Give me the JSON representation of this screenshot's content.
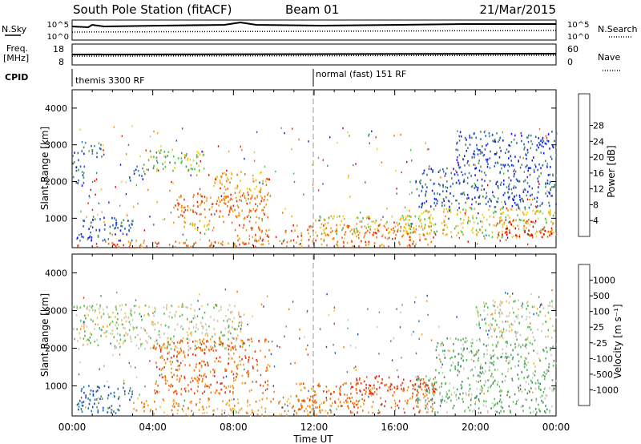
{
  "header": {
    "station": "South Pole Station (fitACF)",
    "beam": "Beam 01",
    "date": "21/Mar/2015"
  },
  "top_panels": {
    "nsky_label": "N.Sky",
    "nsearch_label": "N.Search",
    "noise_ticks": [
      "10^5",
      "10^0"
    ],
    "freq_label_1": "Freq.",
    "freq_label_2": "[MHz]",
    "freq_ticks": [
      "18",
      "8"
    ],
    "nave_label": "Nave",
    "nave_ticks": [
      "60",
      "0"
    ],
    "cpid_label": "CPID",
    "cpid_1": "themis 3300 RF",
    "cpid_2": "normal (fast) 151 RF"
  },
  "chart_data": [
    {
      "type": "heatmap",
      "panel": "power",
      "xlabel": "",
      "ylabel": "Slant Range [km]",
      "x_ticks": [
        "00:00",
        "04:00",
        "08:00",
        "12:00",
        "16:00",
        "20:00",
        "00:00"
      ],
      "xlim_hours": [
        0,
        24
      ],
      "ylim": [
        200,
        4500
      ],
      "y_ticks": [
        1000,
        2000,
        3000,
        4000
      ],
      "colorbar_label": "Power [dB]",
      "colorbar_ticks": [
        4,
        8,
        12,
        16,
        20,
        24,
        28
      ],
      "colorbar_colors": [
        "#1818f0",
        "#2860b8",
        "#4a8c68",
        "#50c050",
        "#e8d020",
        "#f0a020",
        "#f07010",
        "#e83018",
        "#e00000"
      ],
      "regions": [
        {
          "t0": 0.2,
          "t1": 8.5,
          "r0": 220,
          "r1": 420,
          "level": 6
        },
        {
          "t0": 0.2,
          "t1": 3.0,
          "r0": 400,
          "r1": 1100,
          "level": 1
        },
        {
          "t0": 0.0,
          "t1": 0.6,
          "r0": 1900,
          "r1": 3000,
          "level": 1
        },
        {
          "t0": 0.6,
          "t1": 1.6,
          "r0": 2700,
          "r1": 3100,
          "level": 2
        },
        {
          "t0": 2.8,
          "t1": 3.6,
          "r0": 2000,
          "r1": 2400,
          "level": 1
        },
        {
          "t0": 3.5,
          "t1": 6.5,
          "r0": 2300,
          "r1": 2900,
          "level": 3
        },
        {
          "t0": 5.0,
          "t1": 9.8,
          "r0": 900,
          "r1": 1700,
          "level": 6
        },
        {
          "t0": 7.0,
          "t1": 9.8,
          "r0": 1500,
          "r1": 2300,
          "level": 5
        },
        {
          "t0": 5.5,
          "t1": 7.0,
          "r0": 600,
          "r1": 900,
          "level": 4
        },
        {
          "t0": 8.0,
          "t1": 18.0,
          "r0": 250,
          "r1": 850,
          "level": 6
        },
        {
          "t0": 12.0,
          "t1": 18.0,
          "r0": 600,
          "r1": 1100,
          "level": 4
        },
        {
          "t0": 16.5,
          "t1": 24.0,
          "r0": 500,
          "r1": 1300,
          "level": 4
        },
        {
          "t0": 21.0,
          "t1": 24.0,
          "r0": 500,
          "r1": 1000,
          "level": 7
        },
        {
          "t0": 17.0,
          "t1": 24.0,
          "r0": 1300,
          "r1": 2400,
          "level": 1
        },
        {
          "t0": 19.0,
          "t1": 24.0,
          "r0": 2400,
          "r1": 3400,
          "level": 1
        }
      ]
    },
    {
      "type": "heatmap",
      "panel": "velocity",
      "xlabel": "Time UT",
      "ylabel": "Slant Range [km]",
      "x_ticks": [
        "00:00",
        "04:00",
        "08:00",
        "12:00",
        "16:00",
        "20:00",
        "00:00"
      ],
      "xlim_hours": [
        0,
        24
      ],
      "ylim": [
        200,
        4500
      ],
      "y_ticks": [
        1000,
        2000,
        3000,
        4000
      ],
      "colorbar_label": "Velocity [m s⁻¹]",
      "colorbar_ticks": [
        "1000",
        "500",
        "100",
        "25",
        "-25",
        "-100",
        "-500",
        "-1000"
      ],
      "colorbar_colors": [
        "#1848c8",
        "#2870a0",
        "#4a8c68",
        "#50c050",
        "#c8c8c0",
        "#f0c060",
        "#f0a020",
        "#f07010",
        "#e83018"
      ],
      "regions": [
        {
          "t0": 0.0,
          "t1": 8.5,
          "r0": 2000,
          "r1": 3200,
          "level": 4
        },
        {
          "t0": 0.2,
          "t1": 3.0,
          "r0": 300,
          "r1": 1100,
          "level": 1
        },
        {
          "t0": 4.0,
          "t1": 9.8,
          "r0": 800,
          "r1": 2300,
          "level": 7
        },
        {
          "t0": 3.0,
          "t1": 13.0,
          "r0": 230,
          "r1": 700,
          "level": 6
        },
        {
          "t0": 11.0,
          "t1": 18.0,
          "r0": 300,
          "r1": 1100,
          "level": 7
        },
        {
          "t0": 14.0,
          "t1": 18.0,
          "r0": 800,
          "r1": 1300,
          "level": 8
        },
        {
          "t0": 17.0,
          "t1": 24.0,
          "r0": 300,
          "r1": 1300,
          "level": 3
        },
        {
          "t0": 18.0,
          "t1": 24.0,
          "r0": 1300,
          "r1": 2300,
          "level": 3
        },
        {
          "t0": 20.0,
          "t1": 24.0,
          "r0": 2300,
          "r1": 3300,
          "level": 4
        }
      ]
    }
  ]
}
